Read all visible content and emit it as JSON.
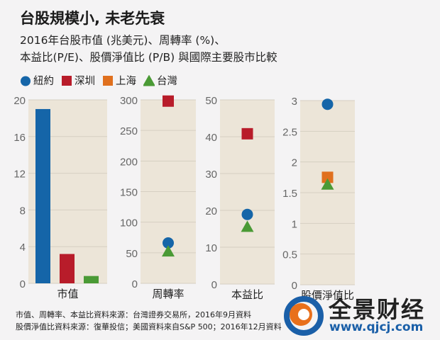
{
  "title": "台股規模小, 未老先衰",
  "subtitle_line1": "2016年台股市值 (兆美元)、周轉率 (%)、",
  "subtitle_line2": "本益比(P/E)、股價淨值比 (P/B) 與國際主要股市比較",
  "legend": [
    {
      "label": "紐約",
      "shape": "circle",
      "color": "#1565a8"
    },
    {
      "label": "深圳",
      "shape": "square",
      "color": "#b81c2a"
    },
    {
      "label": "上海",
      "shape": "square",
      "color": "#e0701e"
    },
    {
      "label": "台灣",
      "shape": "triangle",
      "color": "#4a9a35"
    }
  ],
  "chart_data": [
    {
      "type": "bar",
      "xlabel": "市值",
      "ylim": [
        0,
        20
      ],
      "ticks": [
        "0",
        "4",
        "8",
        "12",
        "16",
        "20"
      ],
      "tick_values": [
        0,
        4,
        8,
        12,
        16,
        20
      ],
      "series": [
        {
          "name": "紐約",
          "value": 19
        },
        {
          "name": "深圳",
          "value": 3.2
        },
        {
          "name": "台灣",
          "value": 0.8
        }
      ]
    },
    {
      "type": "scatter",
      "xlabel": "周轉率",
      "ylim": [
        0,
        300
      ],
      "ticks": [
        "0",
        "50",
        "100",
        "150",
        "200",
        "250",
        "300"
      ],
      "tick_values": [
        0,
        50,
        100,
        150,
        200,
        250,
        300
      ],
      "series": [
        {
          "name": "深圳",
          "value": 298
        },
        {
          "name": "紐約",
          "value": 66
        },
        {
          "name": "台灣",
          "value": 52
        }
      ]
    },
    {
      "type": "scatter",
      "xlabel": "本益比",
      "ylim": [
        0,
        50
      ],
      "ticks": [
        "0",
        "10",
        "20",
        "30",
        "40",
        "50"
      ],
      "tick_values": [
        0,
        10,
        20,
        30,
        40,
        50
      ],
      "series": [
        {
          "name": "深圳",
          "value": 40.8
        },
        {
          "name": "紐約",
          "value": 18.9
        },
        {
          "name": "台灣",
          "value": 15.5
        }
      ]
    },
    {
      "type": "scatter",
      "xlabel": "股價淨值比",
      "ylim": [
        0,
        3
      ],
      "ticks": [
        "0",
        "0.5",
        "1",
        "1.5",
        "2",
        "2.5",
        "3"
      ],
      "tick_values": [
        0,
        0.5,
        1,
        1.5,
        2,
        2.5,
        3
      ],
      "series": [
        {
          "name": "紐約",
          "value": 2.94
        },
        {
          "name": "上海",
          "value": 1.75
        },
        {
          "name": "台灣",
          "value": 1.63
        }
      ]
    }
  ],
  "source_line1": "市值、周轉率、本益比資料來源：台灣證券交易所，2016年9月資料",
  "source_line2": "股價淨值比資料來源：復華投信；美國資料來自S&P 500；2016年12月資料",
  "watermark": {
    "name": "全景财经",
    "url": "www.qjcj.com"
  }
}
